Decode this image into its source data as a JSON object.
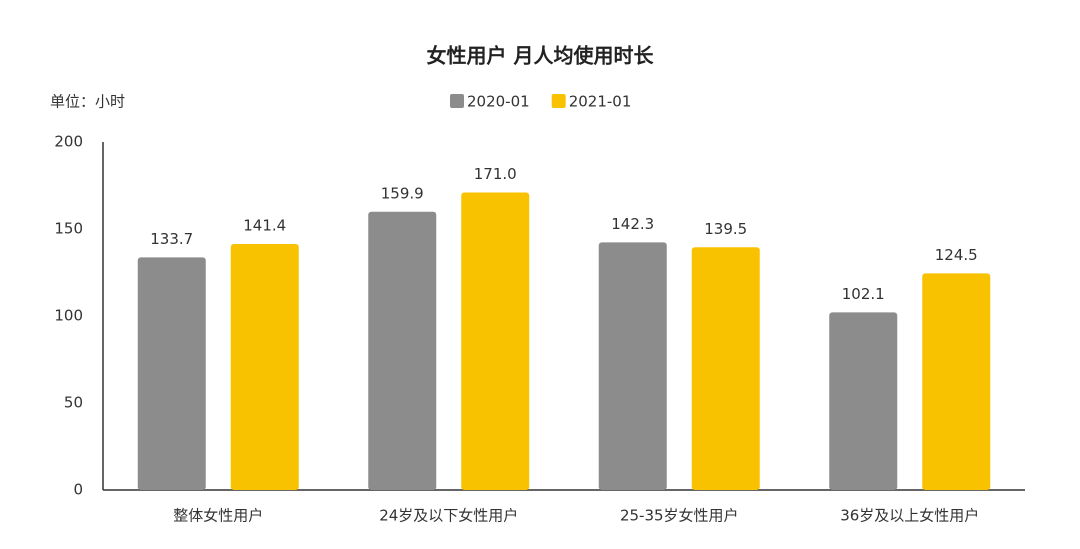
{
  "chart_data": {
    "type": "bar",
    "title": "女性用户 月人均使用时长",
    "unit": "单位：小时",
    "categories": [
      "整体女性用户",
      "24岁及以下女性用户",
      "25-35岁女性用户",
      "36岁及以上女性用户"
    ],
    "series": [
      {
        "name": "2020-01",
        "color": "#8c8c8c",
        "values": [
          133.7,
          159.9,
          142.3,
          102.1
        ],
        "value_labels": [
          "133.7",
          "159.9",
          "142.3",
          "102.1"
        ]
      },
      {
        "name": "2021-01",
        "color": "#f8c200",
        "values": [
          141.4,
          171.0,
          139.5,
          124.5
        ],
        "value_labels": [
          "141.4",
          "171.0",
          "139.5",
          "124.5"
        ]
      }
    ],
    "ylim": [
      0,
      200
    ],
    "yticks": [
      0,
      50,
      100,
      150,
      200
    ],
    "grid": false,
    "legend": "top"
  }
}
